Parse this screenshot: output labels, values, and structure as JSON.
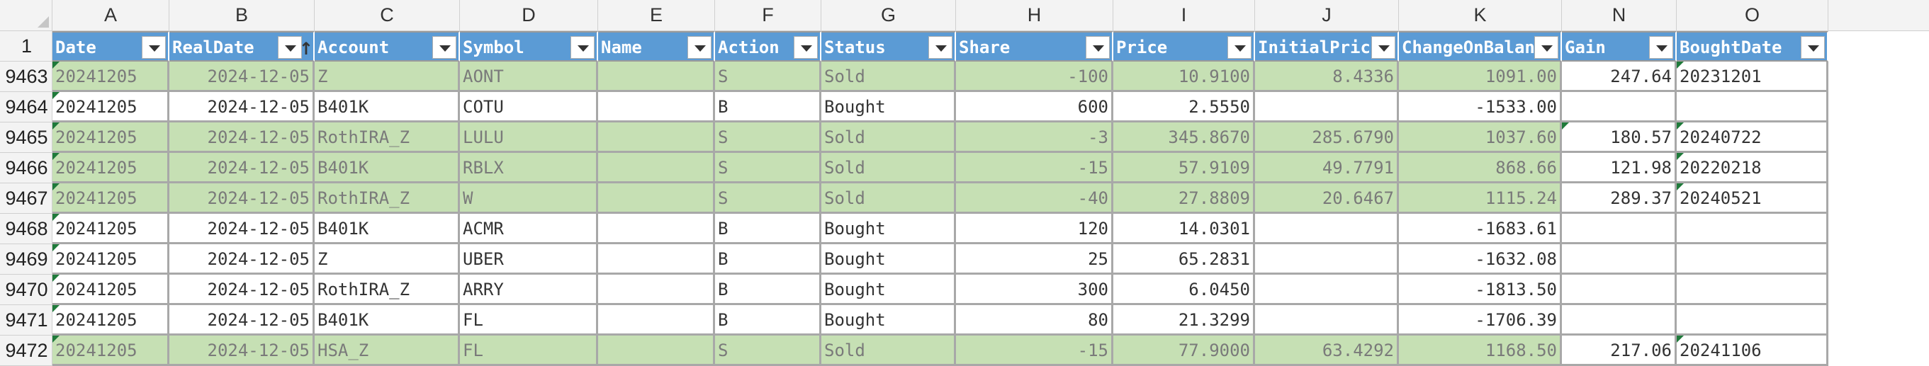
{
  "columns": [
    "A",
    "B",
    "C",
    "D",
    "E",
    "F",
    "G",
    "H",
    "I",
    "J",
    "K",
    "N",
    "O"
  ],
  "header_row_number": "1",
  "headers": [
    "Date",
    "RealDate",
    "Account",
    "Symbol",
    "Name",
    "Action",
    "Status",
    "Share",
    "Price",
    "InitialPrice",
    "ChangeOnBalance",
    "Gain",
    "BoughtDate"
  ],
  "sort_indicator_glyph": "↑",
  "colors": {
    "header_bg": "#5b9bd5",
    "sold_row": "#c6e0b4",
    "bought_row": "#ffffff",
    "error_triangle": "#1f7a3a"
  },
  "rows": [
    {
      "num": "9463",
      "highlight": true,
      "cells": [
        "20241205",
        "2024-12-05",
        "Z",
        "AONT",
        "",
        "S",
        "Sold",
        "-100",
        "10.9100",
        "8.4336",
        "1091.00",
        "247.64",
        "20231201"
      ]
    },
    {
      "num": "9464",
      "highlight": false,
      "cells": [
        "20241205",
        "2024-12-05",
        "B401K",
        "COTU",
        "",
        "B",
        "Bought",
        "600",
        "2.5550",
        "",
        "-1533.00",
        "",
        ""
      ]
    },
    {
      "num": "9465",
      "highlight": true,
      "cells": [
        "20241205",
        "2024-12-05",
        "RothIRA_Z",
        "LULU",
        "",
        "S",
        "Sold",
        "-3",
        "345.8670",
        "285.6790",
        "1037.60",
        "180.57",
        "20240722"
      ]
    },
    {
      "num": "9466",
      "highlight": true,
      "cells": [
        "20241205",
        "2024-12-05",
        "B401K",
        "RBLX",
        "",
        "S",
        "Sold",
        "-15",
        "57.9109",
        "49.7791",
        "868.66",
        "121.98",
        "20220218"
      ]
    },
    {
      "num": "9467",
      "highlight": true,
      "cells": [
        "20241205",
        "2024-12-05",
        "RothIRA_Z",
        "W",
        "",
        "S",
        "Sold",
        "-40",
        "27.8809",
        "20.6467",
        "1115.24",
        "289.37",
        "20240521"
      ]
    },
    {
      "num": "9468",
      "highlight": false,
      "cells": [
        "20241205",
        "2024-12-05",
        "B401K",
        "ACMR",
        "",
        "B",
        "Bought",
        "120",
        "14.0301",
        "",
        "-1683.61",
        "",
        ""
      ]
    },
    {
      "num": "9469",
      "highlight": false,
      "cells": [
        "20241205",
        "2024-12-05",
        "Z",
        "UBER",
        "",
        "B",
        "Bought",
        "25",
        "65.2831",
        "",
        "-1632.08",
        "",
        ""
      ]
    },
    {
      "num": "9470",
      "highlight": false,
      "cells": [
        "20241205",
        "2024-12-05",
        "RothIRA_Z",
        "ARRY",
        "",
        "B",
        "Bought",
        "300",
        "6.0450",
        "",
        "-1813.50",
        "",
        ""
      ]
    },
    {
      "num": "9471",
      "highlight": false,
      "cells": [
        "20241205",
        "2024-12-05",
        "B401K",
        "FL",
        "",
        "B",
        "Bought",
        "80",
        "21.3299",
        "",
        "-1706.39",
        "",
        ""
      ]
    },
    {
      "num": "9472",
      "highlight": true,
      "cells": [
        "20241205",
        "2024-12-05",
        "HSA_Z",
        "FL",
        "",
        "S",
        "Sold",
        "-15",
        "77.9000",
        "63.4292",
        "1168.50",
        "217.06",
        "20241106"
      ]
    }
  ]
}
